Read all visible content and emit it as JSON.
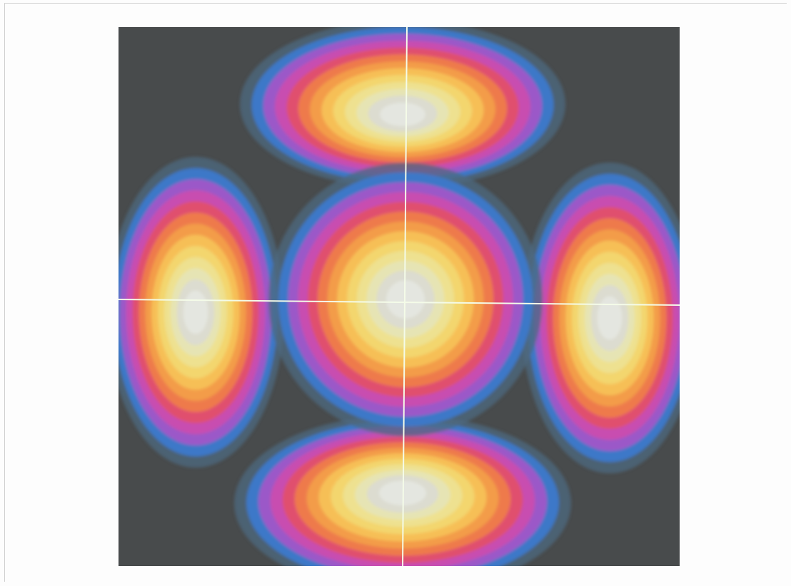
{
  "colors": {
    "page_background": "#fdfdfd",
    "plot_background": "#484b4c",
    "crosshair": "#f4fbe8",
    "contour_levels_outer_to_inner": [
      "#4e6a80",
      "#3d78c8",
      "#9b58c8",
      "#c84eb0",
      "#e0506e",
      "#ee7a4c",
      "#f39c4a",
      "#f6bf56",
      "#f3d66e",
      "#eee190",
      "#e6e4b4",
      "#dcdcd0",
      "#e4e6e0"
    ]
  },
  "icons": {
    "plot": "orbital-density-contour-plot",
    "axes": "crosshair-lines"
  }
}
